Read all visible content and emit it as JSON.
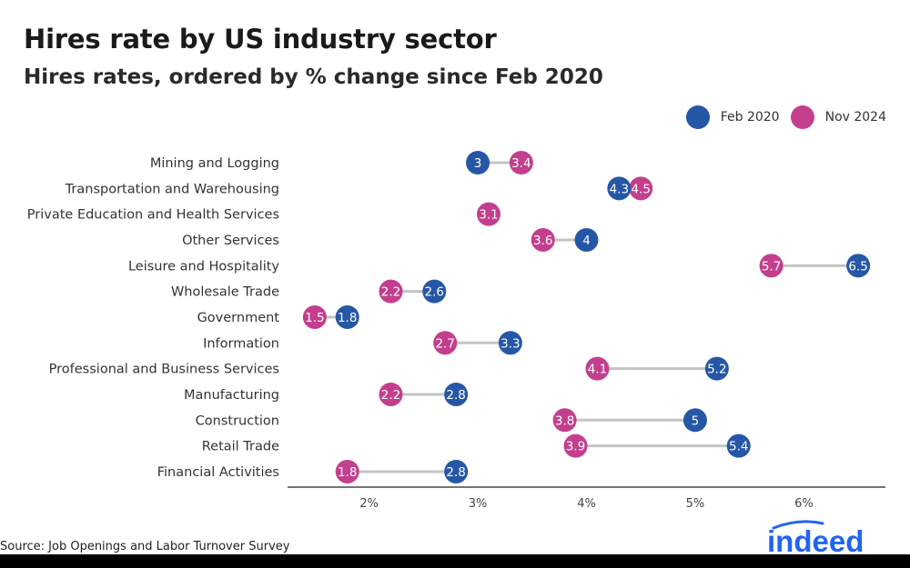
{
  "chart_data": {
    "type": "dumbbell",
    "title": "Hires rate by US industry sector",
    "subtitle": "Hires rates, ordered by % change since Feb 2020",
    "x_unit": "%",
    "xlim": [
      1.25,
      6.75
    ],
    "x_ticks": [
      2,
      3,
      4,
      5,
      6
    ],
    "x_tick_labels": [
      "2%",
      "3%",
      "4%",
      "5%",
      "6%"
    ],
    "series": [
      {
        "name": "Feb 2020",
        "key": "feb",
        "color": "#2657a6"
      },
      {
        "name": "Nov 2024",
        "key": "nov",
        "color": "#c33f8d"
      }
    ],
    "categories": [
      {
        "label": "Mining and Logging",
        "feb": 3.0,
        "nov": 3.4,
        "feb_label": "3",
        "nov_label": "3.4"
      },
      {
        "label": "Transportation and Warehousing",
        "feb": 4.3,
        "nov": 4.5,
        "feb_label": "4.3",
        "nov_label": "4.5"
      },
      {
        "label": "Private Education and Health Services",
        "feb": 3.1,
        "nov": 3.1,
        "feb_label": "3.1",
        "nov_label": "3.1"
      },
      {
        "label": "Other Services",
        "feb": 4.0,
        "nov": 3.6,
        "feb_label": "4",
        "nov_label": "3.6"
      },
      {
        "label": "Leisure and Hospitality",
        "feb": 6.5,
        "nov": 5.7,
        "feb_label": "6.5",
        "nov_label": "5.7"
      },
      {
        "label": "Wholesale Trade",
        "feb": 2.6,
        "nov": 2.2,
        "feb_label": "2.6",
        "nov_label": "2.2"
      },
      {
        "label": "Government",
        "feb": 1.8,
        "nov": 1.5,
        "feb_label": "1.8",
        "nov_label": "1.5"
      },
      {
        "label": "Information",
        "feb": 3.3,
        "nov": 2.7,
        "feb_label": "3.3",
        "nov_label": "2.7"
      },
      {
        "label": "Professional and Business Services",
        "feb": 5.2,
        "nov": 4.1,
        "feb_label": "5.2",
        "nov_label": "4.1"
      },
      {
        "label": "Manufacturing",
        "feb": 2.8,
        "nov": 2.2,
        "feb_label": "2.8",
        "nov_label": "2.2"
      },
      {
        "label": "Construction",
        "feb": 5.0,
        "nov": 3.8,
        "feb_label": "5",
        "nov_label": "3.8"
      },
      {
        "label": "Retail Trade",
        "feb": 5.4,
        "nov": 3.9,
        "feb_label": "5.4",
        "nov_label": "3.9"
      },
      {
        "label": "Financial Activities",
        "feb": 2.8,
        "nov": 1.8,
        "feb_label": "2.8",
        "nov_label": "1.8"
      }
    ]
  },
  "source": "Source: Job Openings and Labor Turnover Survey",
  "brand": {
    "name": "indeed",
    "color": "#2164f3"
  }
}
